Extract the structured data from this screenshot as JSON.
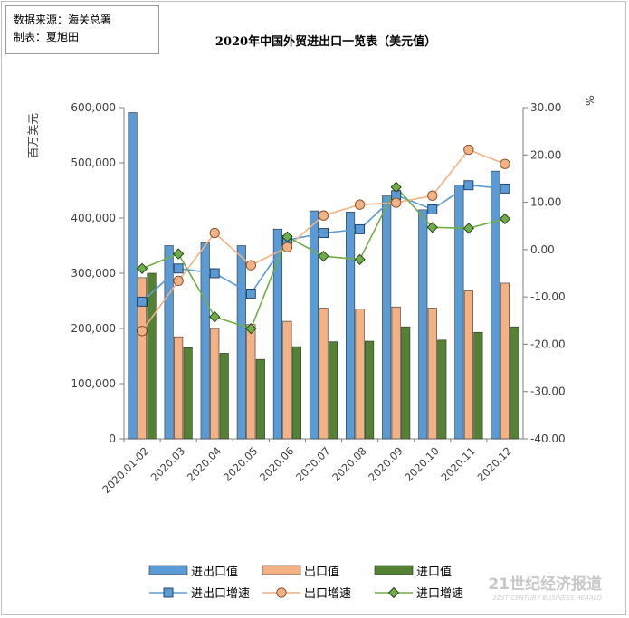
{
  "source_box": {
    "line1": "数据来源：海关总署",
    "line2": "制表：夏旭田"
  },
  "watermark": {
    "main": "21世纪经济报道",
    "sub": "21ST CENTURY BUSINESS HERALD"
  },
  "colors": {
    "total_bar": "#5b9bd5",
    "export_bar": "#f4b183",
    "import_bar": "#548235",
    "total_line": "#5b9bd5",
    "export_line": "#f4b183",
    "import_line": "#70ad47",
    "import_marker": "#70ad47"
  },
  "chart_data": {
    "type": "bar",
    "title": "2020年中国外贸进出口一览表（美元值）",
    "ylabel": "百万美元",
    "y2label": "%",
    "ylim": [
      0,
      600000
    ],
    "y2lim": [
      -40,
      30
    ],
    "yticks": [
      "0",
      "100,000",
      "200,000",
      "300,000",
      "400,000",
      "500,000",
      "600,000"
    ],
    "y2ticks": [
      "-40.00",
      "-30.00",
      "-20.00",
      "-10.00",
      "0.00",
      "10.00",
      "20.00",
      "30.00"
    ],
    "grid": false,
    "legend_position": "bottom",
    "categories": [
      "2020.01-02",
      "2020.03",
      "2020.04",
      "2020.05",
      "2020.06",
      "2020.07",
      "2020.08",
      "2020.09",
      "2020.10",
      "2020.11",
      "2020.12"
    ],
    "series": [
      {
        "name": "进出口值",
        "kind": "bar",
        "axis": "left",
        "values": [
          591000,
          350000,
          355000,
          350000,
          380000,
          413000,
          411000,
          440000,
          415000,
          460000,
          485000
        ]
      },
      {
        "name": "出口值",
        "kind": "bar",
        "axis": "left",
        "values": [
          292000,
          185000,
          200000,
          207000,
          213000,
          237000,
          235000,
          239000,
          237000,
          268000,
          282000
        ]
      },
      {
        "name": "进口值",
        "kind": "bar",
        "axis": "left",
        "values": [
          300000,
          165000,
          155000,
          144000,
          167000,
          176000,
          177000,
          203000,
          179000,
          193000,
          203000
        ]
      },
      {
        "name": "进出口增速",
        "kind": "line",
        "axis": "right",
        "marker": "square",
        "values": [
          -11.0,
          -4.0,
          -5.0,
          -9.3,
          2.0,
          3.5,
          4.3,
          11.5,
          8.5,
          13.6,
          12.9
        ]
      },
      {
        "name": "出口增速",
        "kind": "line",
        "axis": "right",
        "marker": "circle",
        "values": [
          -17.2,
          -6.6,
          3.5,
          -3.3,
          0.5,
          7.2,
          9.5,
          9.9,
          11.4,
          21.1,
          18.1
        ]
      },
      {
        "name": "进口增速",
        "kind": "line",
        "axis": "right",
        "marker": "diamond",
        "values": [
          -4.0,
          -0.9,
          -14.2,
          -16.7,
          2.7,
          -1.4,
          -2.1,
          13.2,
          4.7,
          4.5,
          6.5
        ]
      }
    ]
  }
}
